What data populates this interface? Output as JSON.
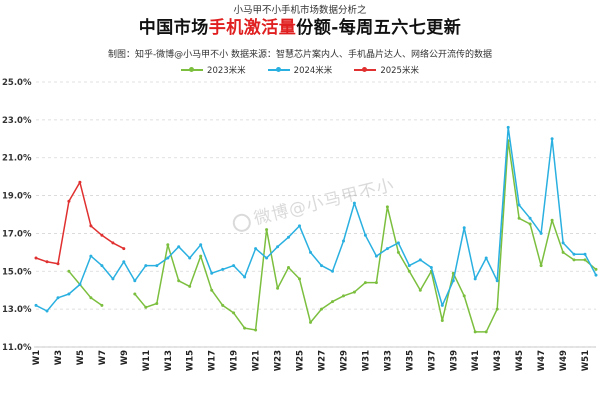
{
  "header": {
    "series_title": "小马甲不小手机市场数据分析之",
    "title_pre": "中国市场",
    "title_highlight": "手机激活量",
    "title_post": "份额-每周五六七更新",
    "subtitle": "制图：知乎-微博@小马甲不小   数据来源：智慧芯片案内人、手机晶片达人、网络公开流传的数据"
  },
  "watermark": "微博@小马甲不小",
  "chart_data": {
    "type": "line",
    "categories": [
      "W1",
      "W2",
      "W3",
      "W4",
      "W5",
      "W6",
      "W7",
      "W8",
      "W9",
      "W10",
      "W11",
      "W12",
      "W13",
      "W14",
      "W15",
      "W16",
      "W17",
      "W18",
      "W19",
      "W20",
      "W21",
      "W22",
      "W23",
      "W24",
      "W25",
      "W26",
      "W27",
      "W28",
      "W29",
      "W30",
      "W31",
      "W32",
      "W33",
      "W34",
      "W35",
      "W36",
      "W37",
      "W38",
      "W39",
      "W40",
      "W41",
      "W42",
      "W43",
      "W44",
      "W45",
      "W46",
      "W47",
      "W48",
      "W49",
      "W50",
      "W51",
      "W52"
    ],
    "tick_labels": [
      "W1",
      "W3",
      "W5",
      "W7",
      "W9",
      "W11",
      "W13",
      "W15",
      "W17",
      "W19",
      "W21",
      "W23",
      "W25",
      "W27",
      "W29",
      "W31",
      "W33",
      "W35",
      "W37",
      "W39",
      "W41",
      "W43",
      "W45",
      "W47",
      "W49",
      "W51"
    ],
    "ylim": [
      11.0,
      25.0
    ],
    "yticks": [
      "11.0%",
      "13.0%",
      "15.0%",
      "17.0%",
      "19.0%",
      "21.0%",
      "23.0%",
      "25.0%"
    ],
    "ytick_values": [
      11,
      13,
      15,
      17,
      19,
      21,
      23,
      25
    ],
    "grid": "horizontal-dashed",
    "legend": "top",
    "series": [
      {
        "name": "2023米米",
        "color": "#7cbf3f",
        "values": [
          null,
          null,
          null,
          15.0,
          14.3,
          13.6,
          13.2,
          null,
          null,
          13.8,
          13.1,
          13.3,
          16.4,
          14.5,
          14.2,
          15.8,
          14.0,
          13.2,
          12.8,
          12.0,
          11.9,
          17.2,
          14.1,
          15.2,
          14.6,
          12.3,
          13.0,
          13.4,
          13.7,
          13.9,
          14.4,
          14.4,
          18.4,
          16.0,
          15.0,
          14.0,
          15.0,
          12.4,
          14.9,
          13.7,
          11.8,
          11.8,
          13.0,
          21.9,
          17.8,
          17.5,
          15.3,
          17.7,
          16.0,
          15.6,
          15.6,
          15.1
        ]
      },
      {
        "name": "2024米米",
        "color": "#2ab0e0",
        "values": [
          13.2,
          12.9,
          13.6,
          13.8,
          14.3,
          15.8,
          15.3,
          14.6,
          15.5,
          14.5,
          15.3,
          15.3,
          15.7,
          16.3,
          15.7,
          16.4,
          14.9,
          15.1,
          15.3,
          14.7,
          16.2,
          15.7,
          16.3,
          16.8,
          17.4,
          16.0,
          15.3,
          15.0,
          16.6,
          18.6,
          16.9,
          15.8,
          16.2,
          16.5,
          15.3,
          15.6,
          15.2,
          13.2,
          14.5,
          17.3,
          14.6,
          15.7,
          14.5,
          22.6,
          18.5,
          17.8,
          17.0,
          22.0,
          16.5,
          15.9,
          15.9,
          14.8
        ]
      },
      {
        "name": "2025米米",
        "color": "#e03030",
        "values": [
          15.7,
          15.5,
          15.4,
          18.7,
          19.7,
          17.4,
          16.9,
          16.5,
          16.2,
          null,
          null,
          null,
          null,
          null,
          null,
          null,
          null,
          null,
          null,
          null,
          null,
          null,
          null,
          null,
          null,
          null,
          null,
          null,
          null,
          null,
          null,
          null,
          null,
          null,
          null,
          null,
          null,
          null,
          null,
          null,
          null,
          null,
          null,
          null,
          null,
          null,
          null,
          null,
          null,
          null,
          null,
          null
        ]
      }
    ]
  }
}
